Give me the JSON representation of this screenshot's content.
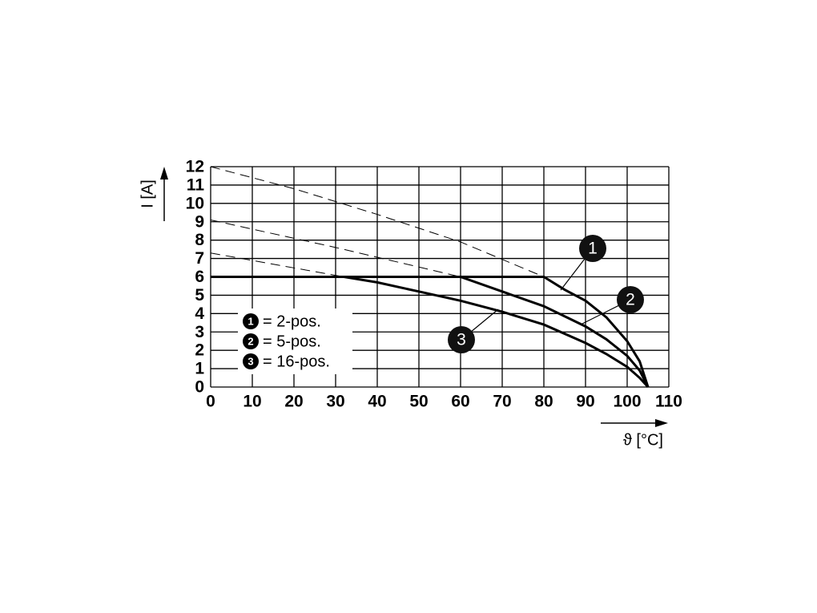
{
  "chart_data": {
    "type": "line",
    "xlabel": "ϑ [°C]",
    "ylabel": "I [A]",
    "xlim": [
      0,
      110
    ],
    "ylim": [
      0,
      12
    ],
    "xticks": [
      0,
      10,
      20,
      30,
      40,
      50,
      60,
      70,
      80,
      90,
      100,
      110
    ],
    "yticks": [
      0,
      1,
      2,
      3,
      4,
      5,
      6,
      7,
      8,
      9,
      10,
      11,
      12
    ],
    "grid": true,
    "series": [
      {
        "name": "= 2-pos.",
        "marker": "1",
        "color": "#000000",
        "style": "solid",
        "x": [
          0,
          80,
          85,
          90,
          95,
          100,
          103,
          105
        ],
        "values": [
          6,
          6,
          5.3,
          4.7,
          3.8,
          2.5,
          1.4,
          0
        ]
      },
      {
        "name": "= 5-pos.",
        "marker": "2",
        "color": "#000000",
        "style": "solid",
        "x": [
          0,
          60,
          70,
          80,
          90,
          95,
          100,
          103,
          105
        ],
        "values": [
          6,
          6,
          5.2,
          4.4,
          3.3,
          2.6,
          1.7,
          0.9,
          0
        ]
      },
      {
        "name": "= 16-pos.",
        "marker": "3",
        "color": "#000000",
        "style": "solid",
        "x": [
          0,
          32,
          40,
          50,
          60,
          70,
          80,
          90,
          95,
          100,
          103,
          105
        ],
        "values": [
          6,
          6,
          5.7,
          5.2,
          4.7,
          4.1,
          3.4,
          2.4,
          1.8,
          1.1,
          0.5,
          0
        ]
      },
      {
        "color": "#000000",
        "style": "dashed",
        "x": [
          0,
          20,
          40,
          60,
          80
        ],
        "values": [
          12,
          10.8,
          9.4,
          7.9,
          6
        ]
      },
      {
        "color": "#000000",
        "style": "dashed",
        "x": [
          0,
          30,
          60
        ],
        "values": [
          9.1,
          7.6,
          6
        ]
      },
      {
        "color": "#000000",
        "style": "dashed",
        "x": [
          0,
          32
        ],
        "values": [
          7.3,
          6
        ]
      }
    ]
  }
}
